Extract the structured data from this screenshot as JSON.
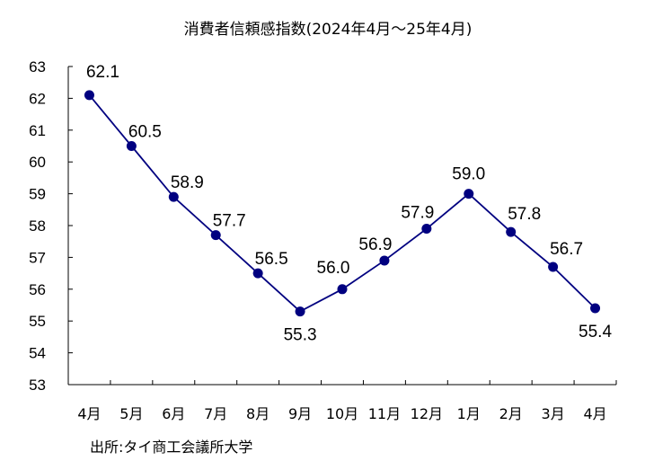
{
  "chart_data": {
    "type": "line",
    "title": "消費者信頼感指数(2024年4月～25年4月)",
    "xlabel": "",
    "ylabel": "",
    "categories": [
      "4月",
      "5月",
      "6月",
      "7月",
      "8月",
      "9月",
      "10月",
      "11月",
      "12月",
      "1月",
      "2月",
      "3月",
      "4月"
    ],
    "series": [
      {
        "name": "消費者信頼感指数",
        "values": [
          62.1,
          60.5,
          58.9,
          57.7,
          56.5,
          55.3,
          56.0,
          56.9,
          57.9,
          59.0,
          57.8,
          56.7,
          55.4
        ],
        "color": "#000080"
      }
    ],
    "data_labels": [
      "62.1",
      "60.5",
      "58.9",
      "57.7",
      "56.5",
      "55.3",
      "56.0",
      "56.9",
      "57.9",
      "59.0",
      "57.8",
      "56.7",
      "55.4"
    ],
    "ylim": [
      53,
      63
    ],
    "yticks": [
      53,
      54,
      55,
      56,
      57,
      58,
      59,
      60,
      61,
      62,
      63
    ],
    "grid": false,
    "legend": "none",
    "source": "出所:タイ商工会議所大学"
  }
}
